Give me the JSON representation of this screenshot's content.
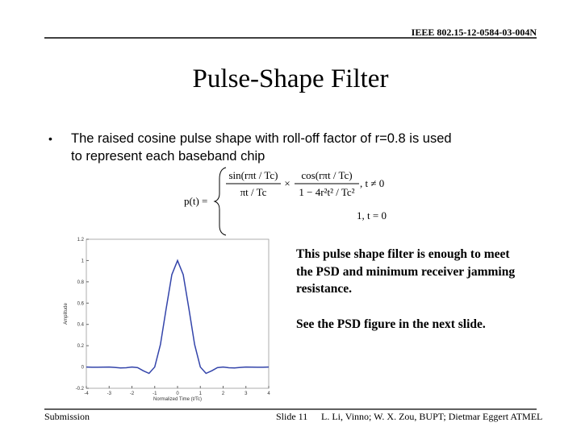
{
  "header": {
    "doc_id": "IEEE 802.15-12-0584-03-004N"
  },
  "title": "Pulse-Shape Filter",
  "bullet": {
    "lines": [
      "The raised cosine pulse shape with roll-off factor of r=0.8 is used",
      "to represent each baseband chip"
    ]
  },
  "formula": {
    "lhs": "p(t) =",
    "term1_num": "sin(rπt / Tc)",
    "term1_den": "πt / Tc",
    "times": "×",
    "term2_num": "cos(rπt / Tc)",
    "term2_den": "1 − 4r²t² / Tc²",
    "cond1": ", t ≠ 0",
    "case2": "1, t = 0"
  },
  "note": {
    "lines": [
      "This pulse shape filter is enough to meet",
      "the PSD and minimum receiver jamming",
      "resistance."
    ],
    "see_also": "See the PSD figure in the next slide."
  },
  "footer": {
    "left": "Submission",
    "center": "Slide 11",
    "right": "L. Li, Vinno; W. X. Zou, BUPT; Dietmar Eggert ATMEL"
  },
  "chart_data": {
    "type": "line",
    "x_label": "Normalized Time (t/Tc)",
    "y_label": "Amplitude",
    "x": [
      -4,
      -3.75,
      -3.5,
      -3.25,
      -3,
      -2.75,
      -2.5,
      -2.25,
      -2,
      -1.75,
      -1.5,
      -1.25,
      -1,
      -0.75,
      -0.5,
      -0.25,
      0,
      0.25,
      0.5,
      0.75,
      1,
      1.25,
      1.5,
      1.75,
      2,
      2.25,
      2.5,
      2.75,
      3,
      3.25,
      3.5,
      3.75,
      4
    ],
    "series": [
      {
        "color": "#3344aa",
        "values": [
          0,
          -0.002,
          -0.002,
          -0.001,
          0,
          -0.004,
          -0.009,
          -0.007,
          0,
          -0.006,
          -0.036,
          -0.06,
          0,
          0.211,
          0.546,
          0.867,
          1,
          0.867,
          0.546,
          0.211,
          0,
          -0.06,
          -0.036,
          -0.006,
          0,
          -0.007,
          -0.009,
          -0.004,
          0,
          -0.001,
          -0.002,
          -0.002,
          0
        ]
      }
    ],
    "xlim": [
      -4,
      4
    ],
    "ylim": [
      -0.2,
      1.2
    ],
    "xticks": [
      -4,
      -3,
      -2,
      -1,
      0,
      1,
      2,
      3,
      4
    ],
    "yticks": [
      -0.2,
      0,
      0.2,
      0.4,
      0.6,
      0.8,
      1,
      1.2
    ],
    "grid": false
  }
}
